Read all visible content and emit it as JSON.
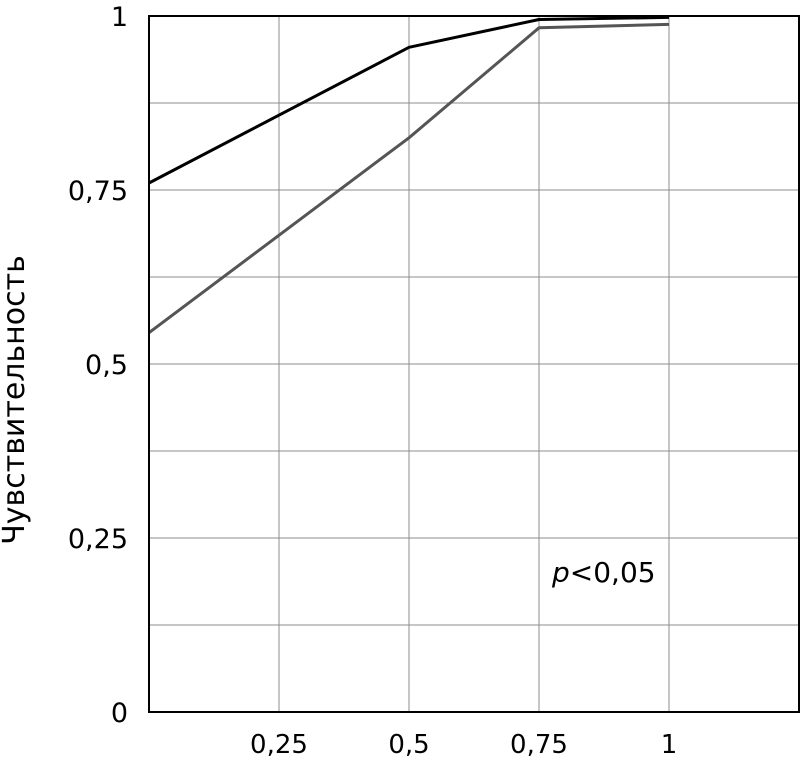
{
  "chart_data": {
    "type": "line",
    "title": "",
    "xlabel": "",
    "ylabel": "Чувствительность",
    "xlim": [
      0,
      1.25
    ],
    "ylim": [
      0,
      1
    ],
    "x_ticks": [
      0.25,
      0.5,
      0.75,
      1
    ],
    "x_tick_labels": [
      "0,25",
      "0,5",
      "0,75",
      "1"
    ],
    "y_ticks": [
      0,
      0.25,
      0.5,
      0.75,
      1
    ],
    "y_tick_labels": [
      "0",
      "0,25",
      "0,5",
      "0,75",
      "1"
    ],
    "grid": true,
    "grid_step_x": 0.25,
    "grid_step_y": 0.125,
    "series": [
      {
        "color": "#000000",
        "points": [
          [
            0,
            0.76
          ],
          [
            0.5,
            0.955
          ],
          [
            0.75,
            0.995
          ],
          [
            1,
            0.998
          ]
        ]
      },
      {
        "color": "#555555",
        "points": [
          [
            0,
            0.545
          ],
          [
            0.5,
            0.825
          ],
          [
            0.75,
            0.983
          ],
          [
            1,
            0.988
          ]
        ]
      }
    ],
    "annotation": {
      "prefix": "p",
      "text": "<0,05"
    }
  }
}
